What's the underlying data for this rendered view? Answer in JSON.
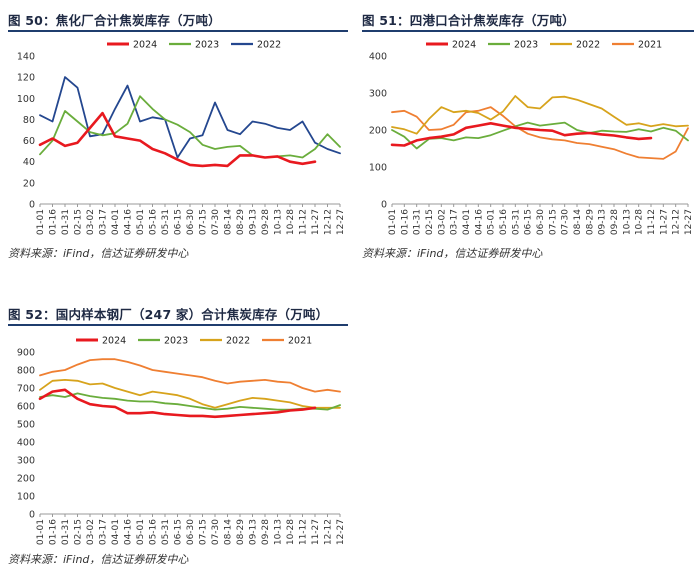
{
  "charts": [
    {
      "title": "图 50：焦化厂合计焦炭库存（万吨）",
      "source": "资料来源：iFind，信达证券研发中心",
      "chart_data": {
        "type": "line",
        "title": "焦化厂合计焦炭库存（万吨）",
        "xlabel": "",
        "ylabel": "",
        "ylim": [
          0,
          140
        ],
        "yticks": [
          0,
          20,
          40,
          60,
          80,
          100,
          120,
          140
        ],
        "categories": [
          "01-01",
          "01-16",
          "01-31",
          "02-15",
          "03-02",
          "03-17",
          "04-01",
          "04-16",
          "05-01",
          "05-16",
          "05-31",
          "06-15",
          "06-30",
          "07-15",
          "07-30",
          "08-14",
          "08-29",
          "09-13",
          "09-28",
          "10-13",
          "10-28",
          "11-12",
          "11-27",
          "12-12",
          "12-27"
        ],
        "legend_position": "top",
        "series": [
          {
            "name": "2024",
            "color": "#e8191f",
            "values": [
              56,
              62,
              55,
              58,
              72,
              86,
              64,
              62,
              60,
              52,
              48,
              42,
              37,
              36,
              37,
              36,
              46,
              46,
              44,
              45,
              40,
              38,
              40,
              null,
              null
            ]
          },
          {
            "name": "2023",
            "color": "#6aad3c",
            "values": [
              47,
              60,
              88,
              78,
              68,
              65,
              67,
              76,
              102,
              90,
              80,
              75,
              68,
              56,
              52,
              54,
              55,
              46,
              44,
              45,
              46,
              44,
              52,
              66,
              54
            ]
          },
          {
            "name": "2022",
            "color": "#24478f",
            "values": [
              84,
              78,
              120,
              110,
              64,
              66,
              90,
              112,
              78,
              82,
              80,
              44,
              62,
              65,
              96,
              70,
              66,
              78,
              76,
              72,
              70,
              78,
              58,
              52,
              48
            ]
          }
        ]
      }
    },
    {
      "title": "图 51：四港口合计焦炭库存（万吨）",
      "source": "资料来源：iFind，信达证券研发中心",
      "chart_data": {
        "type": "line",
        "title": "四港口合计焦炭库存（万吨）",
        "xlabel": "",
        "ylabel": "",
        "ylim": [
          0,
          400
        ],
        "yticks": [
          0,
          100,
          200,
          300,
          400
        ],
        "categories": [
          "01-01",
          "01-16",
          "01-31",
          "02-15",
          "03-02",
          "03-17",
          "04-01",
          "04-16",
          "05-01",
          "05-16",
          "05-31",
          "06-15",
          "06-30",
          "07-15",
          "07-30",
          "08-14",
          "08-29",
          "09-13",
          "09-28",
          "10-13",
          "10-28",
          "11-12",
          "11-27",
          "12-12",
          "12-27"
        ],
        "legend_position": "top",
        "series": [
          {
            "name": "2024",
            "color": "#e8191f",
            "values": [
              160,
              158,
              172,
              178,
              182,
              188,
              206,
              212,
              218,
              212,
              206,
              203,
              200,
              198,
              186,
              190,
              192,
              188,
              185,
              180,
              176,
              178,
              null,
              null,
              null
            ]
          },
          {
            "name": "2023",
            "color": "#6aad3c",
            "values": [
              200,
              182,
              150,
              176,
              178,
              172,
              180,
              178,
              186,
              198,
              210,
              220,
              212,
              216,
              220,
              200,
              192,
              198,
              196,
              195,
              202,
              196,
              206,
              198,
              172
            ]
          },
          {
            "name": "2022",
            "color": "#d7a31c",
            "values": [
              208,
              202,
              190,
              230,
              262,
              248,
              252,
              246,
              228,
              250,
              292,
              262,
              258,
              288,
              290,
              282,
              270,
              258,
              236,
              214,
              218,
              210,
              216,
              210,
              212
            ]
          },
          {
            "name": "2021",
            "color": "#ef7f32",
            "values": [
              248,
              252,
              236,
              200,
              202,
              214,
              248,
              252,
              262,
              238,
              210,
              190,
              180,
              175,
              172,
              165,
              162,
              155,
              148,
              136,
              126,
              124,
              122,
              142,
              205
            ]
          }
        ]
      }
    },
    {
      "title": "图 52：国内样本钢厂（247 家）合计焦炭库存（万吨）",
      "source": "资料来源：iFind，信达证券研发中心",
      "chart_data": {
        "type": "line",
        "title": "国内样本钢厂（247 家）合计焦炭库存（万吨）",
        "xlabel": "",
        "ylabel": "",
        "ylim": [
          0,
          900
        ],
        "yticks": [
          0,
          100,
          200,
          300,
          400,
          500,
          600,
          700,
          800,
          900
        ],
        "categories": [
          "01-01",
          "01-16",
          "01-31",
          "02-15",
          "03-02",
          "03-17",
          "04-01",
          "04-16",
          "05-01",
          "05-16",
          "05-31",
          "06-15",
          "06-30",
          "07-15",
          "07-30",
          "08-14",
          "08-29",
          "09-13",
          "09-28",
          "10-13",
          "10-28",
          "11-12",
          "11-27",
          "12-12",
          "12-27"
        ],
        "legend_position": "top",
        "series": [
          {
            "name": "2024",
            "color": "#e8191f",
            "values": [
              640,
              680,
              690,
              640,
              610,
              600,
              595,
              560,
              560,
              565,
              555,
              550,
              545,
              545,
              540,
              545,
              550,
              555,
              560,
              565,
              575,
              580,
              590,
              null,
              null
            ]
          },
          {
            "name": "2023",
            "color": "#6aad3c",
            "values": [
              650,
              660,
              650,
              670,
              655,
              645,
              640,
              630,
              625,
              625,
              615,
              610,
              600,
              590,
              580,
              585,
              595,
              590,
              585,
              580,
              580,
              585,
              585,
              580,
              605
            ]
          },
          {
            "name": "2022",
            "color": "#d7a31c",
            "values": [
              690,
              740,
              745,
              740,
              720,
              725,
              700,
              680,
              660,
              680,
              670,
              660,
              640,
              610,
              590,
              610,
              630,
              645,
              640,
              630,
              620,
              600,
              590,
              590,
              590
            ]
          },
          {
            "name": "2021",
            "color": "#ef7f32",
            "values": [
              770,
              790,
              800,
              830,
              855,
              860,
              860,
              845,
              825,
              800,
              790,
              780,
              770,
              760,
              740,
              725,
              735,
              740,
              745,
              735,
              730,
              700,
              680,
              690,
              680
            ]
          }
        ]
      }
    }
  ]
}
